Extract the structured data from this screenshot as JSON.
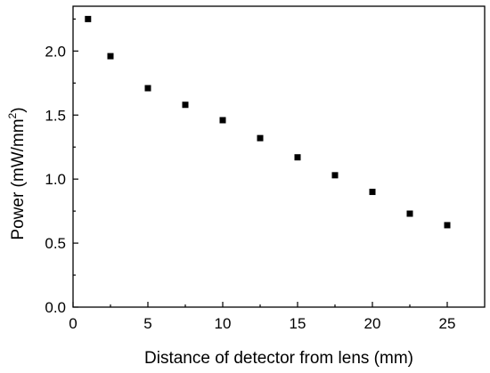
{
  "chart_data": {
    "type": "scatter",
    "xlabel": "Distance of detector from lens (mm)",
    "ylabel_prefix": "Power (mW/mm",
    "ylabel_sup": "2",
    "ylabel_suffix": ")",
    "xlim": [
      0,
      27.5
    ],
    "ylim": [
      0,
      2.35
    ],
    "x_ticks": [
      0,
      5,
      10,
      15,
      20,
      25
    ],
    "x_tick_labels": [
      "0",
      "5",
      "10",
      "15",
      "20",
      "25"
    ],
    "y_ticks": [
      0.0,
      0.5,
      1.0,
      1.5,
      2.0
    ],
    "y_tick_labels": [
      "0.0",
      "0.5",
      "1.0",
      "1.5",
      "2.0"
    ],
    "grid": false,
    "marker": "square",
    "marker_color": "#000000",
    "points": [
      {
        "x": 1.0,
        "y": 2.25
      },
      {
        "x": 2.5,
        "y": 1.96
      },
      {
        "x": 5.0,
        "y": 1.71
      },
      {
        "x": 7.5,
        "y": 1.58
      },
      {
        "x": 10.0,
        "y": 1.46
      },
      {
        "x": 12.5,
        "y": 1.32
      },
      {
        "x": 15.0,
        "y": 1.17
      },
      {
        "x": 17.5,
        "y": 1.03
      },
      {
        "x": 20.0,
        "y": 0.9
      },
      {
        "x": 22.5,
        "y": 0.73
      },
      {
        "x": 25.0,
        "y": 0.64
      }
    ]
  }
}
